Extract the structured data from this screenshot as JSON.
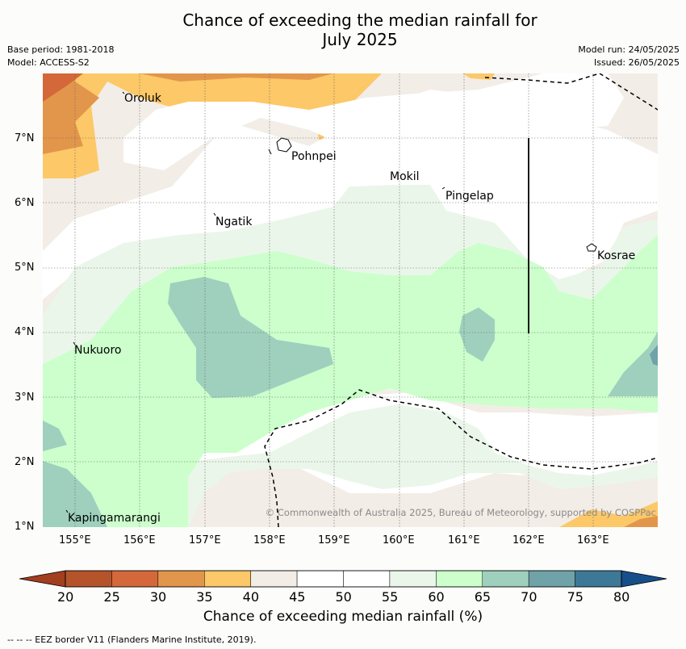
{
  "title_line1": "Chance of exceeding the median rainfall for",
  "title_line2": "July 2025",
  "meta": {
    "base_period": "Base period: 1981-2018",
    "model": "Model: ACCESS-S2",
    "model_run": "Model run: 24/05/2025",
    "issued": "Issued: 26/05/2025"
  },
  "map": {
    "lon_ticks": [
      "155°E",
      "156°E",
      "157°E",
      "158°E",
      "159°E",
      "160°E",
      "161°E",
      "162°E",
      "163°E"
    ],
    "lat_ticks": [
      "7°N",
      "6°N",
      "5°N",
      "4°N",
      "3°N",
      "2°N",
      "1°N"
    ],
    "places": [
      "Oroluk",
      "Pohnpei",
      "Mokil",
      "Pingelap",
      "Ngatik",
      "Kosrae",
      "Nukuoro",
      "Kapingamarangi"
    ],
    "copyright": "© Commonwealth of Australia 2025, Bureau of Meteorology, supported by COSPPac"
  },
  "legend": {
    "labels": [
      "20",
      "25",
      "30",
      "35",
      "40",
      "45",
      "50",
      "55",
      "60",
      "65",
      "70",
      "75",
      "80"
    ],
    "colors": [
      "#a13f1f",
      "#b5532a",
      "#d4683a",
      "#e2964b",
      "#fcc868",
      "#f3ede7",
      "#ffffff",
      "#ffffff",
      "#ebf6ea",
      "#ccffcc",
      "#9ed0bd",
      "#6fa3a9",
      "#3e7897",
      "#174f8b"
    ],
    "title": "Chance of exceeding median rainfall (%)"
  },
  "footer": "--  --  -- EEZ border V11 (Flanders Marine Institute, 2019)."
}
